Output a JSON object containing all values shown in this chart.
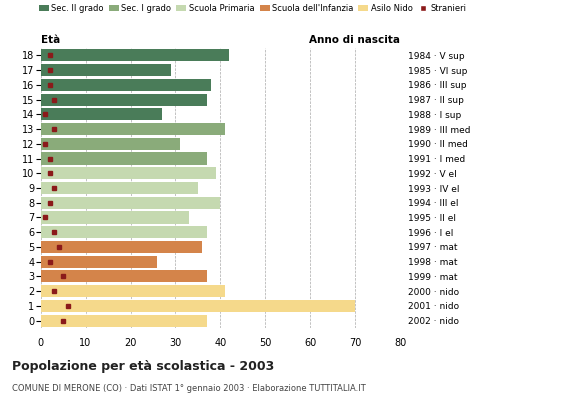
{
  "ages": [
    0,
    1,
    2,
    3,
    4,
    5,
    6,
    7,
    8,
    9,
    10,
    11,
    12,
    13,
    14,
    15,
    16,
    17,
    18
  ],
  "bar_values": [
    37,
    70,
    41,
    37,
    26,
    36,
    37,
    33,
    40,
    35,
    39,
    37,
    31,
    41,
    27,
    37,
    38,
    29,
    42
  ],
  "stranieri_values": [
    5,
    6,
    3,
    5,
    2,
    4,
    3,
    1,
    2,
    3,
    2,
    2,
    1,
    3,
    1,
    3,
    2,
    2,
    2
  ],
  "right_labels": [
    "2002 · nido",
    "2001 · nido",
    "2000 · nido",
    "1999 · mat",
    "1998 · mat",
    "1997 · mat",
    "1996 · I el",
    "1995 · II el",
    "1994 · III el",
    "1993 · IV el",
    "1992 · V el",
    "1991 · I med",
    "1990 · II med",
    "1989 · III med",
    "1988 · I sup",
    "1987 · II sup",
    "1986 · III sup",
    "1985 · VI sup",
    "1984 · V sup"
  ],
  "colors": {
    "sec2": "#4a7c59",
    "sec1": "#8aab7a",
    "primaria": "#c5d9b0",
    "infanzia": "#d4844a",
    "nido": "#f5d98b",
    "stranieri": "#8b1a1a"
  },
  "legend_labels": [
    "Sec. II grado",
    "Sec. I grado",
    "Scuola Primaria",
    "Scuola dell'Infanzia",
    "Asilo Nido",
    "Stranieri"
  ],
  "title": "Popolazione per età scolastica - 2003",
  "subtitle": "COMUNE DI MERONE (CO) · Dati ISTAT 1° gennaio 2003 · Elaborazione TUTTITALIA.IT",
  "xlabel_right": "Anno di nascita",
  "xlabel_left": "Età",
  "xlim": [
    0,
    80
  ],
  "xticks": [
    0,
    10,
    20,
    30,
    40,
    50,
    60,
    70,
    80
  ],
  "background_color": "#ffffff"
}
